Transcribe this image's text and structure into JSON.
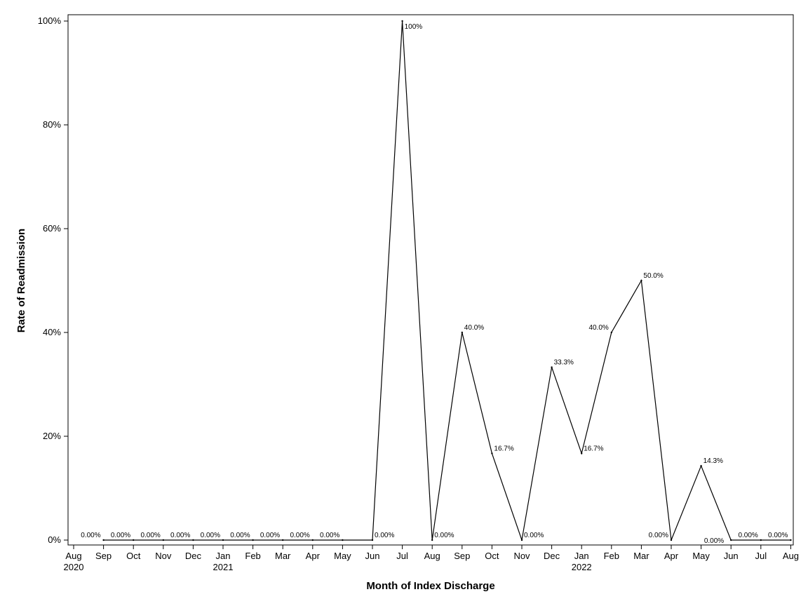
{
  "chart_data": {
    "type": "line",
    "xlabel": "Month of Index Discharge",
    "ylabel": "Rate of Readmission",
    "ylim": [
      0,
      100
    ],
    "y_ticks": [
      "0%",
      "20%",
      "40%",
      "60%",
      "80%",
      "100%"
    ],
    "y_tick_values": [
      0,
      20,
      40,
      60,
      80,
      100
    ],
    "x_ticks": [
      {
        "month": "Aug",
        "year": "2020"
      },
      {
        "month": "Sep",
        "year": ""
      },
      {
        "month": "Oct",
        "year": ""
      },
      {
        "month": "Nov",
        "year": ""
      },
      {
        "month": "Dec",
        "year": ""
      },
      {
        "month": "Jan",
        "year": "2021"
      },
      {
        "month": "Feb",
        "year": ""
      },
      {
        "month": "Mar",
        "year": ""
      },
      {
        "month": "Apr",
        "year": ""
      },
      {
        "month": "May",
        "year": ""
      },
      {
        "month": "Jun",
        "year": ""
      },
      {
        "month": "Jul",
        "year": ""
      },
      {
        "month": "Aug",
        "year": ""
      },
      {
        "month": "Sep",
        "year": ""
      },
      {
        "month": "Oct",
        "year": ""
      },
      {
        "month": "Nov",
        "year": ""
      },
      {
        "month": "Dec",
        "year": ""
      },
      {
        "month": "Jan",
        "year": "2022"
      },
      {
        "month": "Feb",
        "year": ""
      },
      {
        "month": "Mar",
        "year": ""
      },
      {
        "month": "Apr",
        "year": ""
      },
      {
        "month": "May",
        "year": ""
      },
      {
        "month": "Jun",
        "year": ""
      },
      {
        "month": "Jul",
        "year": ""
      },
      {
        "month": "Aug",
        "year": ""
      }
    ],
    "series": [
      {
        "points": [
          {
            "x": "2020-09",
            "y": 0,
            "label": "0.00%"
          },
          {
            "x": "2020-10",
            "y": 0,
            "label": "0.00%"
          },
          {
            "x": "2020-11",
            "y": 0,
            "label": "0.00%"
          },
          {
            "x": "2020-12",
            "y": 0,
            "label": "0.00%"
          },
          {
            "x": "2021-01",
            "y": 0,
            "label": "0.00%"
          },
          {
            "x": "2021-02",
            "y": 0,
            "label": "0.00%"
          },
          {
            "x": "2021-03",
            "y": 0,
            "label": "0.00%"
          },
          {
            "x": "2021-04",
            "y": 0,
            "label": "0.00%"
          },
          {
            "x": "2021-05",
            "y": 0,
            "label": "0.00%"
          },
          {
            "x": "2021-06",
            "y": 0,
            "label": "0.00%"
          },
          {
            "x": "2021-07",
            "y": 100,
            "label": "100%"
          },
          {
            "x": "2021-08",
            "y": 0,
            "label": "0.00%"
          },
          {
            "x": "2021-09",
            "y": 40,
            "label": "40.0%"
          },
          {
            "x": "2021-10",
            "y": 16.7,
            "label": "16.7%"
          },
          {
            "x": "2021-11",
            "y": 0,
            "label": "0.00%"
          },
          {
            "x": "2021-12",
            "y": 33.3,
            "label": "33.3%"
          },
          {
            "x": "2022-01",
            "y": 16.7,
            "label": "16.7%"
          },
          {
            "x": "2022-02",
            "y": 40,
            "label": "40.0%"
          },
          {
            "x": "2022-03",
            "y": 50,
            "label": "50.0%"
          },
          {
            "x": "2022-04",
            "y": 0,
            "label": "0.00%"
          },
          {
            "x": "2022-05",
            "y": 14.3,
            "label": "14.3%"
          },
          {
            "x": "2022-06",
            "y": 0,
            "label": "0.00%"
          },
          {
            "x": "2022-07",
            "y": 0,
            "label": "0.00%"
          },
          {
            "x": "2022-08",
            "y": 0,
            "label": "0.00%"
          }
        ]
      }
    ],
    "grid": false,
    "color": "#000000"
  }
}
